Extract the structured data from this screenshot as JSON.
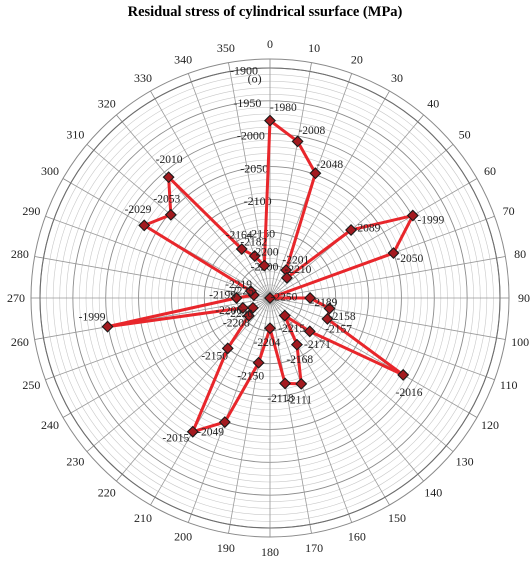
{
  "chart_data": {
    "type": "radar",
    "title": "Residual stress  of cylindrical  ssurface (MPa)",
    "angle_unit_label": "(o)",
    "angle_ticks": [
      0,
      10,
      20,
      30,
      40,
      50,
      60,
      70,
      80,
      90,
      100,
      110,
      120,
      130,
      140,
      150,
      160,
      170,
      180,
      190,
      200,
      210,
      220,
      230,
      240,
      250,
      260,
      270,
      280,
      290,
      300,
      310,
      320,
      330,
      340,
      350
    ],
    "radial_axis": {
      "range": [
        -2250,
        -1900
      ],
      "tick_labels": [
        "-1900",
        "-1950",
        "-2000",
        "-2050",
        "-2100",
        "-2150",
        "-2200"
      ],
      "tick_values": [
        -1900,
        -1950,
        -2000,
        -2050,
        -2100,
        -2150,
        -2200
      ]
    },
    "grid": true,
    "series": [
      {
        "color": "#e8262b",
        "marker_color": "#a31a1f",
        "angles": [
          0,
          10,
          20,
          30,
          40,
          50,
          60,
          70,
          80,
          90,
          100,
          110,
          120,
          130,
          140,
          150,
          160,
          170,
          180,
          190,
          200,
          210,
          220,
          230,
          240,
          250,
          260,
          270,
          280,
          290,
          300,
          310,
          320,
          330,
          340,
          350
        ],
        "values": [
          -1980,
          -2008,
          -2048,
          -2201,
          -2210,
          -2089,
          -1999,
          -2050,
          -2250,
          -2189,
          -2158,
          -2157,
          -2016,
          -2171,
          -2215,
          -2168,
          -2111,
          -2118,
          -2204,
          -2150,
          -2049,
          -2015,
          -2150,
          -2208,
          -2220,
          -2206,
          -1999,
          -2199,
          -2225,
          -2219,
          -2029,
          -2053,
          -2010,
          -2164,
          -2182,
          -2200
        ],
        "point_labels": [
          "-1980",
          "-2008",
          "-2048",
          "-2201",
          "-2210",
          "-2089",
          "-1999",
          "-2050",
          "-2250",
          "-2189",
          "-2158",
          "-2157",
          "-2016",
          "-2171",
          "-2215",
          "-2168",
          "-2111",
          "-2118",
          "-2204",
          "-2150",
          "-2049",
          "-2015",
          "-2150",
          "-2208",
          "-2220",
          "-2206",
          "-1999",
          "-2199",
          "-2225",
          "-2219",
          "-2029",
          "-2053",
          "-2010",
          "-2164",
          "-2182",
          "-2200"
        ]
      }
    ]
  }
}
